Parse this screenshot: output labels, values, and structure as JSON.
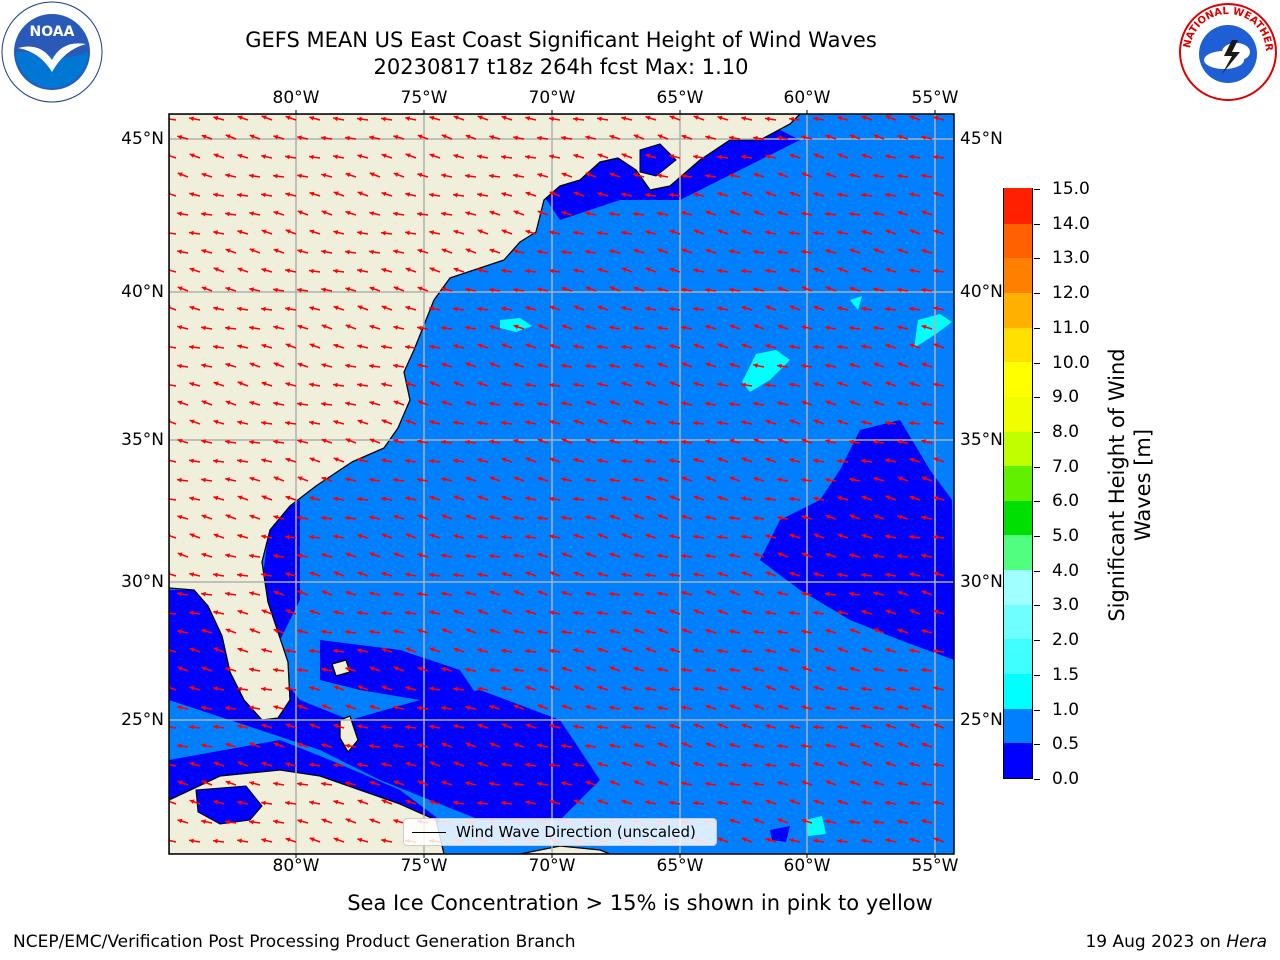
{
  "title": {
    "line1": "GEFS MEAN US East Coast Significant Height of Wind Waves",
    "line2": "20230817 t18z 264h fcst   Max: 1.10"
  },
  "logos": {
    "left": "noaa-logo",
    "left_text": "NOAA",
    "right": "nws-logo",
    "right_text": "NATIONAL WEATHER SERVICE"
  },
  "map": {
    "lon_range": [
      -85,
      -54.4
    ],
    "lat_range": [
      20.5,
      45.8
    ],
    "lon_ticks": [
      "80°W",
      "75°W",
      "70°W",
      "65°W",
      "60°W",
      "55°W"
    ],
    "lat_ticks": [
      "45°N",
      "40°N",
      "35°N",
      "30°N",
      "25°N"
    ],
    "land_color": "#efefdc",
    "ocean_color": "#0080ff",
    "grid_color": "#b0b0b0",
    "arrow_color": "#ff0000"
  },
  "colorbar": {
    "labels": [
      "15.0",
      "14.0",
      "13.0",
      "12.0",
      "11.0",
      "10.0",
      "9.0",
      "8.0",
      "7.0",
      "6.0",
      "5.0",
      "4.0",
      "3.0",
      "2.0",
      "1.5",
      "1.0",
      "0.5",
      "0.0"
    ],
    "colors": [
      "#0000ff",
      "#0080ff",
      "#00ffff",
      "#40ffff",
      "#70ffff",
      "#a0ffff",
      "#50ff80",
      "#00e000",
      "#60f000",
      "#c0ff00",
      "#f0ff00",
      "#ffff00",
      "#ffe000",
      "#ffb000",
      "#ff8000",
      "#ff6000",
      "#ff2000"
    ],
    "title_line1": "Significant Height of Wind",
    "title_line2": "Waves [m]"
  },
  "legend": {
    "text": "Wind Wave Direction (unscaled)"
  },
  "footer": {
    "note": "Sea Ice Concentration > 15% is shown in pink to yellow",
    "branch": "NCEP/EMC/Verification Post Processing Product Generation Branch",
    "date": "19 Aug 2023 on ",
    "system": "Hera"
  }
}
